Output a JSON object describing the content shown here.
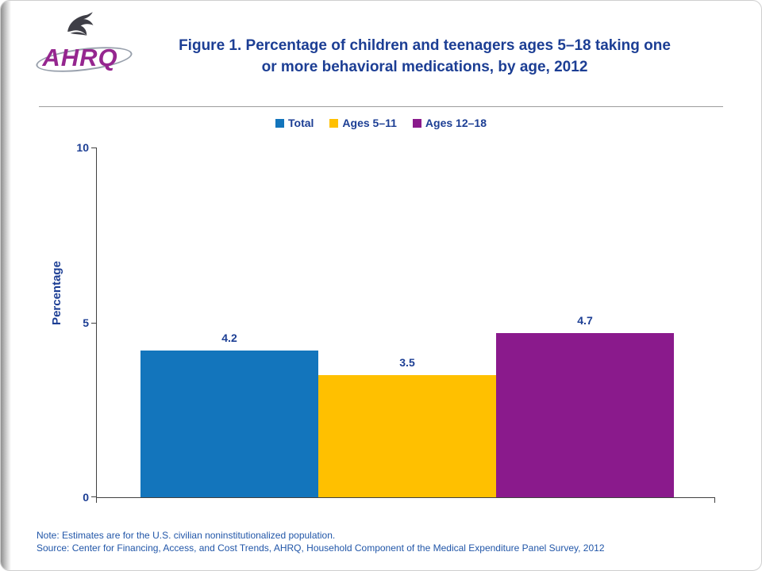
{
  "header": {
    "logo": {
      "brand": "AHRQ",
      "symbol": "hhs-eagle-icon"
    },
    "title_line1": "Figure 1. Percentage of children and teenagers ages 5–18 taking one",
    "title_line2": "or more behavioral medications, by age, 2012"
  },
  "legend": [
    {
      "label": "Total",
      "color": "#1375BC"
    },
    {
      "label": "Ages 5–11",
      "color": "#FFC000"
    },
    {
      "label": "Ages 12–18",
      "color": "#8A1A8C"
    }
  ],
  "chart_data": {
    "type": "bar",
    "categories": [
      "Total",
      "Ages 5–11",
      "Ages 12–18"
    ],
    "values": [
      4.2,
      3.5,
      4.7
    ],
    "colors": [
      "#1375BC",
      "#FFC000",
      "#8A1A8C"
    ],
    "title": "Figure 1. Percentage of children and teenagers ages 5–18 taking one or more behavioral medications, by age, 2012",
    "xlabel": "",
    "ylabel": "Percentage",
    "ylim": [
      0,
      10
    ],
    "yticks": [
      0,
      5,
      10
    ],
    "grid": false,
    "legend_position": "top"
  },
  "footer": {
    "note": "Note: Estimates are for the U.S. civilian noninstitutionalized population.",
    "source": "Source: Center for Financing, Access, and Cost Trends, AHRQ, Household Component of the Medical Expenditure Panel Survey, 2012"
  }
}
